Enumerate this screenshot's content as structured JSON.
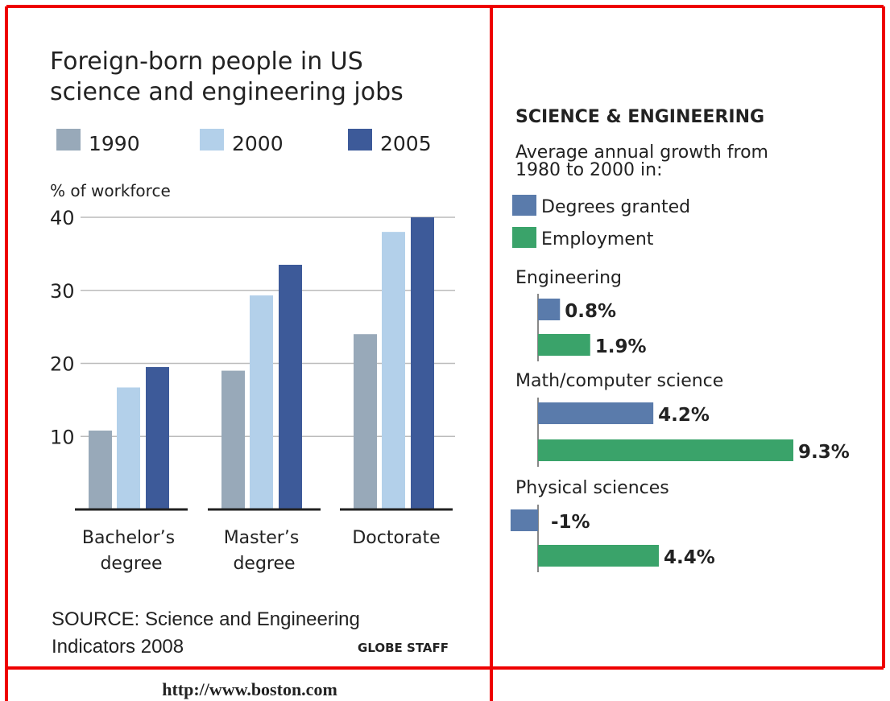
{
  "chart_data": [
    {
      "type": "bar",
      "title": [
        "Foreign-born people in US",
        "science and engineering jobs"
      ],
      "ylabel": "% of workforce",
      "categories": [
        "Bachelor’s degree",
        "Master’s degree",
        "Doctorate"
      ],
      "series": [
        {
          "name": "1990",
          "color": "#98a9b9",
          "values": [
            10.8,
            19,
            24
          ]
        },
        {
          "name": "2000",
          "color": "#b3d0ea",
          "values": [
            16.7,
            29.3,
            38
          ]
        },
        {
          "name": "2005",
          "color": "#3d5a99",
          "values": [
            19.5,
            33.5,
            40
          ]
        }
      ],
      "ylim": [
        0,
        40
      ],
      "yticks": [
        10,
        20,
        30,
        40
      ],
      "grid": true,
      "source": [
        "SOURCE: Science and Engineering",
        "Indicators 2008"
      ],
      "credit": "GLOBE STAFF"
    },
    {
      "type": "hbar",
      "title": "SCIENCE & ENGINEERING",
      "subtitle": [
        "Average annual growth from",
        "1980 to 2000 in:"
      ],
      "categories": [
        "Engineering",
        "Math/computer science",
        "Physical sciences"
      ],
      "series": [
        {
          "name": "Degrees granted",
          "color": "#5a7bab",
          "values": [
            0.8,
            4.2,
            -1
          ],
          "value_labels": [
            "0.8%",
            "4.2%",
            "-1%"
          ]
        },
        {
          "name": "Employment",
          "color": "#3aa36a",
          "values": [
            1.9,
            9.3,
            4.4
          ],
          "value_labels": [
            "1.9%",
            "9.3%",
            "4.4%"
          ]
        }
      ]
    }
  ],
  "url": "http://www.boston.com"
}
